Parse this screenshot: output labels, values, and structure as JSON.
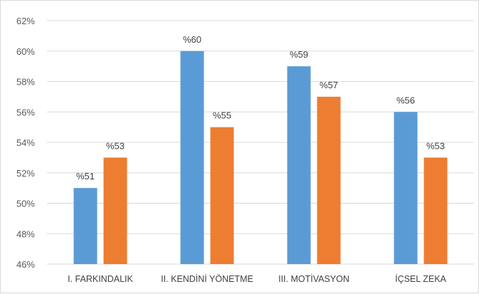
{
  "chart_data": {
    "type": "bar",
    "categories": [
      "I. FARKINDALIK",
      "II. KENDİNİ YÖNETME",
      "III. MOTİVASYON",
      "İÇSEL ZEKA"
    ],
    "series": [
      {
        "values": [
          51,
          60,
          59,
          56
        ],
        "labels": [
          "%51",
          "%60",
          "%59",
          "%56"
        ],
        "color": "#5b9bd5"
      },
      {
        "values": [
          53,
          55,
          57,
          53
        ],
        "labels": [
          "%53",
          "%55",
          "%57",
          "%53"
        ],
        "color": "#ed7d31"
      }
    ],
    "y_ticks": [
      46,
      48,
      50,
      52,
      54,
      56,
      58,
      60,
      62
    ],
    "y_tick_labels": [
      "46%",
      "48%",
      "50%",
      "52%",
      "54%",
      "56%",
      "58%",
      "60%",
      "62%"
    ],
    "ylim": [
      46,
      62
    ],
    "grid": true,
    "legend": "none",
    "gridline_color": "#d9d9d9"
  }
}
